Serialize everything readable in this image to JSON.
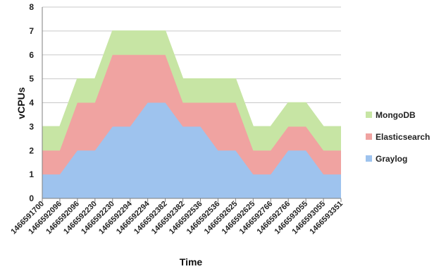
{
  "chart_data": {
    "type": "area",
    "stacked": true,
    "title": "",
    "xlabel": "Time",
    "ylabel": "vCPUs",
    "ylim": [
      0,
      8
    ],
    "yticks": [
      0,
      1,
      2,
      3,
      4,
      5,
      6,
      7,
      8
    ],
    "grid": true,
    "legend_position": "right",
    "categories": [
      "1466591700",
      "1466592096",
      "1466592096",
      "1466592230",
      "1466592230",
      "1466592294",
      "1466592294",
      "1466592382",
      "1466592382",
      "1466592536",
      "1466592536",
      "1466592625",
      "1466592625",
      "1466592766",
      "1466592766",
      "1466593055",
      "1466593055",
      "1466593351"
    ],
    "series": [
      {
        "name": "Graylog",
        "color": "#9ec3ee",
        "values": [
          1,
          1,
          2,
          2,
          3,
          3,
          4,
          4,
          3,
          3,
          2,
          2,
          1,
          1,
          2,
          2,
          1,
          1
        ]
      },
      {
        "name": "Elasticsearch",
        "color": "#f0a3a1",
        "values": [
          1,
          1,
          2,
          2,
          3,
          3,
          2,
          2,
          1,
          1,
          2,
          2,
          1,
          1,
          1,
          1,
          1,
          1
        ]
      },
      {
        "name": "MongoDB",
        "color": "#c7e5a4",
        "values": [
          1,
          1,
          1,
          1,
          1,
          1,
          1,
          1,
          1,
          1,
          1,
          1,
          1,
          1,
          1,
          1,
          1,
          1
        ]
      }
    ],
    "legend_order": [
      "MongoDB",
      "Elasticsearch",
      "Graylog"
    ]
  }
}
